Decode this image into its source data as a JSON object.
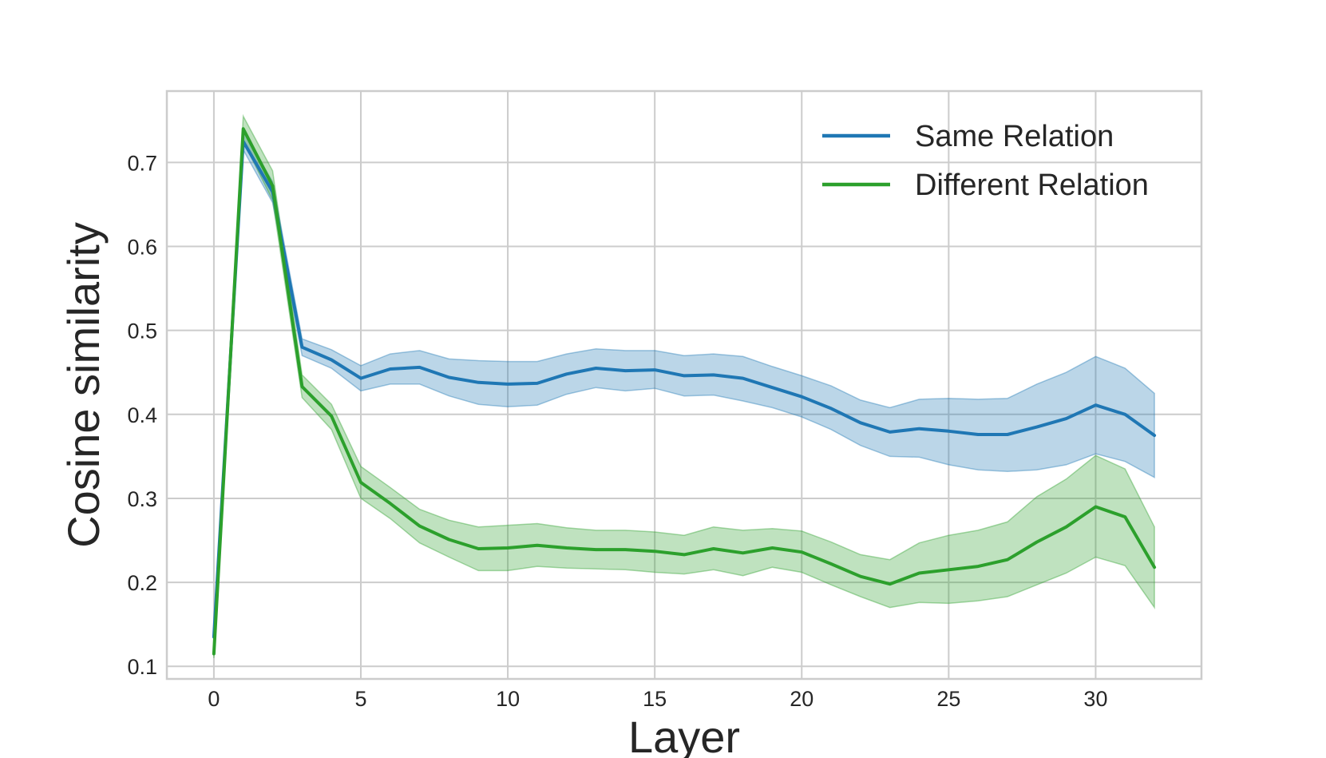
{
  "chart_data": {
    "type": "line",
    "xlabel": "Layer",
    "ylabel": "Cosine similarity",
    "xlim": [
      -1.6,
      33.6
    ],
    "ylim": [
      0.085,
      0.785
    ],
    "xticks": [
      0,
      5,
      10,
      15,
      20,
      25,
      30
    ],
    "yticks": [
      0.1,
      0.2,
      0.3,
      0.4,
      0.5,
      0.6,
      0.7
    ],
    "grid": true,
    "legend_position": "upper-right",
    "x": [
      0,
      1,
      2,
      3,
      4,
      5,
      6,
      7,
      8,
      9,
      10,
      11,
      12,
      13,
      14,
      15,
      16,
      17,
      18,
      19,
      20,
      21,
      22,
      23,
      24,
      25,
      26,
      27,
      28,
      29,
      30,
      31,
      32
    ],
    "series": [
      {
        "name": "Same Relation",
        "color": "#1f77b4",
        "values": [
          0.135,
          0.725,
          0.665,
          0.48,
          0.465,
          0.443,
          0.454,
          0.456,
          0.444,
          0.438,
          0.436,
          0.437,
          0.448,
          0.455,
          0.452,
          0.453,
          0.446,
          0.447,
          0.443,
          0.432,
          0.421,
          0.407,
          0.39,
          0.379,
          0.383,
          0.38,
          0.376,
          0.376,
          0.385,
          0.395,
          0.411,
          0.4,
          0.375
        ],
        "lower": [
          0.13,
          0.715,
          0.652,
          0.47,
          0.455,
          0.428,
          0.436,
          0.436,
          0.422,
          0.412,
          0.409,
          0.411,
          0.424,
          0.432,
          0.428,
          0.431,
          0.422,
          0.423,
          0.416,
          0.408,
          0.397,
          0.382,
          0.363,
          0.35,
          0.349,
          0.34,
          0.334,
          0.332,
          0.334,
          0.34,
          0.353,
          0.344,
          0.325
        ],
        "upper": [
          0.14,
          0.737,
          0.677,
          0.49,
          0.477,
          0.458,
          0.472,
          0.476,
          0.466,
          0.464,
          0.463,
          0.463,
          0.472,
          0.478,
          0.476,
          0.476,
          0.47,
          0.472,
          0.469,
          0.457,
          0.446,
          0.434,
          0.417,
          0.408,
          0.418,
          0.419,
          0.418,
          0.419,
          0.436,
          0.45,
          0.469,
          0.455,
          0.425
        ]
      },
      {
        "name": "Different Relation",
        "color": "#2ca02c",
        "values": [
          0.115,
          0.74,
          0.672,
          0.433,
          0.398,
          0.319,
          0.294,
          0.267,
          0.251,
          0.24,
          0.241,
          0.244,
          0.241,
          0.239,
          0.239,
          0.237,
          0.233,
          0.24,
          0.235,
          0.241,
          0.236,
          0.222,
          0.207,
          0.198,
          0.211,
          0.215,
          0.219,
          0.227,
          0.248,
          0.266,
          0.29,
          0.278,
          0.218
        ],
        "lower": [
          0.11,
          0.725,
          0.655,
          0.42,
          0.382,
          0.3,
          0.276,
          0.247,
          0.23,
          0.214,
          0.214,
          0.219,
          0.217,
          0.216,
          0.215,
          0.212,
          0.21,
          0.215,
          0.208,
          0.218,
          0.212,
          0.197,
          0.183,
          0.17,
          0.176,
          0.175,
          0.178,
          0.183,
          0.197,
          0.211,
          0.23,
          0.22,
          0.17
        ],
        "upper": [
          0.12,
          0.755,
          0.69,
          0.447,
          0.412,
          0.338,
          0.313,
          0.287,
          0.274,
          0.266,
          0.268,
          0.27,
          0.265,
          0.262,
          0.262,
          0.26,
          0.256,
          0.266,
          0.262,
          0.264,
          0.261,
          0.248,
          0.233,
          0.227,
          0.247,
          0.256,
          0.262,
          0.272,
          0.302,
          0.323,
          0.351,
          0.335,
          0.266
        ]
      }
    ]
  }
}
